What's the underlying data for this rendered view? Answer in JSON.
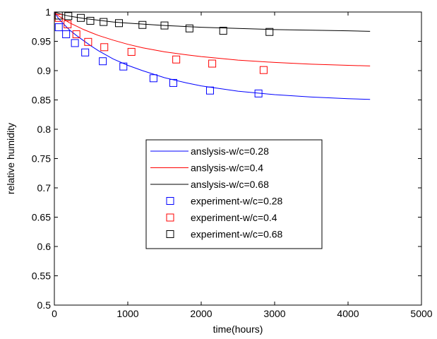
{
  "chart_data": {
    "type": "line",
    "title": "",
    "xlabel": "time(hours)",
    "ylabel": "relative humidity",
    "xlim": [
      0,
      5000
    ],
    "ylim": [
      0.5,
      1
    ],
    "xticks": [
      0,
      1000,
      2000,
      3000,
      4000,
      5000
    ],
    "xtick_labels": [
      "0",
      "1000",
      "2000",
      "3000",
      "4000",
      "5000"
    ],
    "yticks": [
      0.5,
      0.55,
      0.6,
      0.65,
      0.7,
      0.75,
      0.8,
      0.85,
      0.9,
      0.95,
      1
    ],
    "ytick_labels": [
      "0.5",
      "0.55",
      "0.6",
      "0.65",
      "0.7",
      "0.75",
      "0.8",
      "0.85",
      "0.9",
      "0.95",
      "1"
    ],
    "grid": false,
    "legend_position": "center",
    "series": [
      {
        "name": "anslysis-w/c=0.28",
        "kind": "line",
        "color": "#0000ff",
        "x": [
          0,
          50,
          100,
          200,
          300,
          400,
          500,
          600,
          800,
          1000,
          1200,
          1500,
          1800,
          2000,
          2500,
          3000,
          3500,
          4000,
          4300
        ],
        "y": [
          1.0,
          0.99,
          0.983,
          0.97,
          0.96,
          0.951,
          0.942,
          0.934,
          0.92,
          0.909,
          0.9,
          0.888,
          0.879,
          0.874,
          0.865,
          0.859,
          0.855,
          0.852,
          0.851
        ]
      },
      {
        "name": "anslysis-w/c=0.4",
        "kind": "line",
        "color": "#ff0000",
        "x": [
          0,
          50,
          100,
          200,
          300,
          400,
          500,
          600,
          800,
          1000,
          1200,
          1500,
          1800,
          2000,
          2500,
          3000,
          3500,
          4000,
          4300
        ],
        "y": [
          1.0,
          0.994,
          0.99,
          0.982,
          0.976,
          0.97,
          0.965,
          0.96,
          0.952,
          0.945,
          0.939,
          0.932,
          0.927,
          0.924,
          0.918,
          0.914,
          0.911,
          0.909,
          0.908
        ]
      },
      {
        "name": "anslysis-w/c=0.68",
        "kind": "line",
        "color": "#000000",
        "x": [
          0,
          100,
          200,
          400,
          600,
          800,
          1000,
          1500,
          2000,
          2500,
          3000,
          3500,
          4000,
          4300
        ],
        "y": [
          1.0,
          0.996,
          0.993,
          0.989,
          0.986,
          0.983,
          0.981,
          0.977,
          0.974,
          0.972,
          0.97,
          0.969,
          0.968,
          0.967
        ]
      },
      {
        "name": "experiment-w/c=0.28",
        "kind": "marker",
        "color": "#0000ff",
        "x": [
          60,
          160,
          280,
          420,
          660,
          940,
          1350,
          1620,
          2120,
          2780
        ],
        "y": [
          0.974,
          0.962,
          0.947,
          0.931,
          0.916,
          0.907,
          0.887,
          0.879,
          0.866,
          0.861
        ]
      },
      {
        "name": "experiment-w/c=0.4",
        "kind": "marker",
        "color": "#ff0000",
        "x": [
          60,
          180,
          300,
          460,
          680,
          1050,
          1660,
          2150,
          2850
        ],
        "y": [
          0.99,
          0.979,
          0.962,
          0.949,
          0.94,
          0.932,
          0.919,
          0.912,
          0.901
        ]
      },
      {
        "name": "experiment-w/c=0.68",
        "kind": "marker",
        "color": "#000000",
        "x": [
          60,
          190,
          360,
          490,
          670,
          880,
          1200,
          1500,
          1840,
          2300,
          2930
        ],
        "y": [
          0.994,
          0.993,
          0.99,
          0.985,
          0.983,
          0.981,
          0.978,
          0.977,
          0.972,
          0.968,
          0.966
        ]
      }
    ]
  }
}
